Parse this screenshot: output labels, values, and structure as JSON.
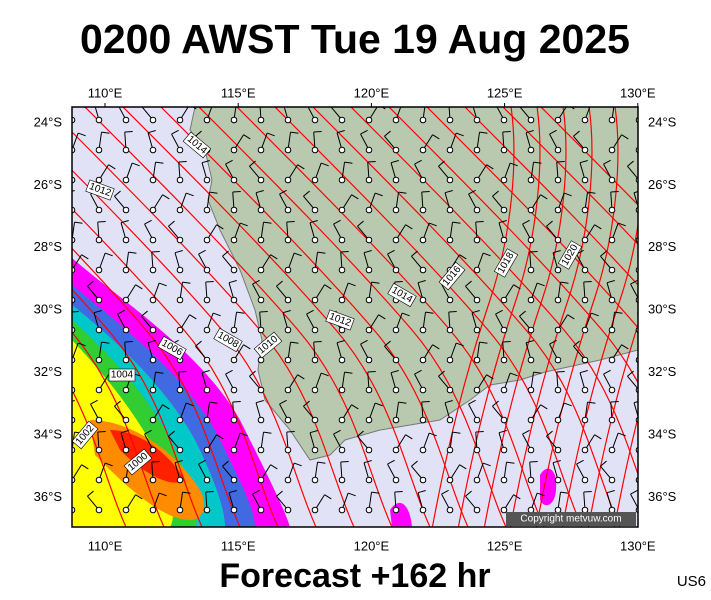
{
  "header": {
    "title": "0200 AWST Tue 19 Aug 2025"
  },
  "map": {
    "lon_labels": [
      "110°E",
      "115°E",
      "120°E",
      "125°E",
      "130°E"
    ],
    "lat_labels": [
      "24°S",
      "26°S",
      "28°S",
      "30°S",
      "32°S",
      "34°S",
      "36°S"
    ],
    "isobar_labels": [
      "1014",
      "1012",
      "1016",
      "1018",
      "1020",
      "1014",
      "1012",
      "1010",
      "1008",
      "1006",
      "1004",
      "1002",
      "1000"
    ],
    "copyright": "Copyright metvuw.com"
  },
  "footer": {
    "forecast": "Forecast +162 hr",
    "code": "US6"
  }
}
